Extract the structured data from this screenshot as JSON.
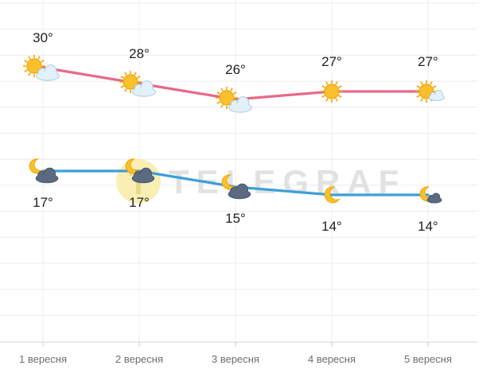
{
  "chart_data": {
    "type": "line",
    "title": "",
    "xlabel": "",
    "ylabel": "",
    "categories": [
      "1 вересня",
      "2 вересня",
      "3 вересня",
      "4 вересня",
      "5 вересня"
    ],
    "ylim": [
      10,
      35
    ],
    "grid": true,
    "series": [
      {
        "key": "day",
        "color": "#e8698a",
        "values": [
          30,
          28,
          26,
          27,
          27
        ],
        "labels": [
          "30°",
          "28°",
          "26°",
          "27°",
          "27°"
        ],
        "icons": [
          "sun-cloud-icon",
          "sun-cloud-icon",
          "sun-cloud-icon",
          "sun-icon",
          "sun-small-cloud-icon"
        ]
      },
      {
        "key": "night",
        "color": "#3d9fd8",
        "values": [
          17,
          17,
          15,
          14,
          14
        ],
        "labels": [
          "17°",
          "17°",
          "15°",
          "14°",
          "14°"
        ],
        "icons": [
          "moon-dark-cloud-icon",
          "moon-dark-cloud-icon",
          "moon-dark-cloud-icon",
          "moon-icon",
          "moon-small-cloud-icon"
        ]
      }
    ]
  },
  "watermark": {
    "text": "TELEGRAF",
    "logo_letter": "T"
  }
}
